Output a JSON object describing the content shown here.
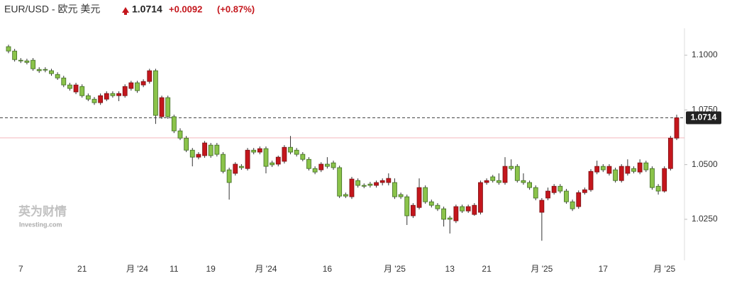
{
  "chart_data": {
    "type": "candlestick",
    "title": "EUR/USD - 欧元 美元",
    "price": 1.0714,
    "change": "+0.0092",
    "change_pct": "(+0.87%)",
    "watermark": "英为财情",
    "watermark_sub": "Investing.com",
    "reference_line": 1.0622,
    "up_color": "#c4161c",
    "down_color": "#8bc34a",
    "ylim": [
      1.0072,
      1.1123
    ],
    "yticks": [
      {
        "value": 1.025,
        "label": "1.0250"
      },
      {
        "value": 1.05,
        "label": "1.0500"
      },
      {
        "value": 1.075,
        "label": "1.0750"
      },
      {
        "value": 1.1,
        "label": "1.1000"
      }
    ],
    "categories": [
      null,
      null,
      "7",
      null,
      null,
      null,
      null,
      null,
      null,
      null,
      null,
      null,
      "21",
      null,
      null,
      null,
      null,
      null,
      null,
      null,
      null,
      "月 '24",
      null,
      null,
      null,
      null,
      null,
      "11",
      null,
      null,
      null,
      null,
      null,
      "19",
      null,
      null,
      null,
      null,
      null,
      null,
      null,
      null,
      "月 '24",
      null,
      null,
      null,
      null,
      null,
      null,
      null,
      null,
      null,
      "16",
      null,
      null,
      null,
      null,
      null,
      null,
      null,
      null,
      null,
      null,
      "月 '25",
      null,
      null,
      null,
      null,
      null,
      null,
      null,
      null,
      "13",
      null,
      null,
      null,
      null,
      null,
      "21",
      null,
      null,
      null,
      null,
      null,
      null,
      null,
      null,
      "月 '25",
      null,
      null,
      null,
      null,
      null,
      null,
      null,
      null,
      null,
      "17",
      null,
      null,
      null,
      null,
      null,
      null,
      null,
      null,
      null,
      "月 '25",
      null,
      null
    ],
    "open": [
      1.1039,
      1.1019,
      1.0977,
      1.0974,
      1.0977,
      1.0935,
      1.0935,
      1.0929,
      1.0912,
      1.0896,
      1.0864,
      1.0832,
      1.0857,
      1.0815,
      1.0799,
      1.0783,
      1.0799,
      1.0825,
      1.0815,
      1.0815,
      1.0848,
      1.0874,
      1.0864,
      1.088,
      1.0929,
      1.0719,
      1.0806,
      1.0719,
      1.0654,
      1.0621,
      1.0566,
      1.0534,
      1.0541,
      1.0589,
      1.0589,
      1.0547,
      1.0476,
      1.046,
      1.0492,
      1.0482,
      1.0566,
      1.0557,
      1.0573,
      1.0508,
      1.0502,
      1.0515,
      1.0579,
      1.0566,
      1.0547,
      1.0524,
      1.0482,
      1.0476,
      1.0502,
      1.0508,
      1.0486,
      1.0363,
      1.0353,
      1.0427,
      1.0405,
      1.0411,
      1.0405,
      1.0418,
      1.0418,
      1.0418,
      1.0363,
      1.0353,
      1.0266,
      1.0304,
      1.0395,
      1.033,
      1.0314,
      1.0298,
      1.0256,
      1.0243,
      1.0308,
      1.0288,
      1.0272,
      1.0282,
      1.0418,
      1.0444,
      1.0427,
      1.0418,
      1.0492,
      1.0492,
      1.0427,
      1.0418,
      1.0395,
      1.0282,
      1.0347,
      1.0372,
      1.0401,
      1.0379,
      1.033,
      1.0308,
      1.0372,
      1.0385,
      1.0466,
      1.0492,
      1.046,
      1.0476,
      1.0427,
      1.046,
      1.0482,
      1.0466,
      1.0508,
      1.0482,
      1.0401,
      1.0379,
      1.0482,
      1.0621
    ],
    "high": [
      1.1048,
      1.1029,
      1.0987,
      1.0984,
      1.0987,
      1.0945,
      1.0945,
      1.0938,
      1.0922,
      1.0906,
      1.0874,
      1.0874,
      1.0867,
      1.0825,
      1.0809,
      1.0825,
      1.0835,
      1.0835,
      1.0835,
      1.0867,
      1.0883,
      1.0883,
      1.089,
      1.0938,
      1.0938,
      1.0815,
      1.0815,
      1.0728,
      1.0666,
      1.0631,
      1.0576,
      1.0557,
      1.0608,
      1.0599,
      1.0599,
      1.0557,
      1.0486,
      1.0511,
      1.0502,
      1.0576,
      1.0576,
      1.0583,
      1.0583,
      1.0518,
      1.0541,
      1.0589,
      1.0631,
      1.0576,
      1.0557,
      1.0534,
      1.0492,
      1.0511,
      1.0534,
      1.0518,
      1.0495,
      1.0372,
      1.0444,
      1.0437,
      1.0414,
      1.0421,
      1.0427,
      1.0437,
      1.046,
      1.0437,
      1.0372,
      1.0363,
      1.0324,
      1.0437,
      1.0405,
      1.034,
      1.0324,
      1.0308,
      1.0266,
      1.0317,
      1.0317,
      1.0317,
      1.0324,
      1.0427,
      1.0437,
      1.0453,
      1.046,
      1.0534,
      1.0524,
      1.0502,
      1.046,
      1.0427,
      1.0405,
      1.0347,
      1.0395,
      1.0411,
      1.0411,
      1.0389,
      1.034,
      1.0382,
      1.0395,
      1.0479,
      1.0518,
      1.0502,
      1.0502,
      1.0486,
      1.0502,
      1.0524,
      1.0492,
      1.0524,
      1.0518,
      1.0492,
      1.0411,
      1.0492,
      1.0631,
      1.0728
    ],
    "low": [
      1.1009,
      1.0971,
      1.0964,
      1.0958,
      1.0929,
      1.0919,
      1.0922,
      1.0906,
      1.0887,
      1.0854,
      1.0838,
      1.0822,
      1.0806,
      1.079,
      1.0773,
      1.0773,
      1.079,
      1.0806,
      1.079,
      1.0806,
      1.0838,
      1.0828,
      1.0854,
      1.087,
      1.0686,
      1.0709,
      1.0709,
      1.0644,
      1.0612,
      1.0557,
      1.0492,
      1.0524,
      1.0531,
      1.0531,
      1.0537,
      1.046,
      1.034,
      1.045,
      1.0476,
      1.0473,
      1.0547,
      1.0547,
      1.046,
      1.0489,
      1.0492,
      1.0505,
      1.0547,
      1.0537,
      1.0515,
      1.0473,
      1.0456,
      1.0466,
      1.0482,
      1.0476,
      1.0347,
      1.0347,
      1.0343,
      1.0395,
      1.0392,
      1.0395,
      1.0395,
      1.0405,
      1.0405,
      1.0343,
      1.0343,
      1.0224,
      1.0256,
      1.0295,
      1.0321,
      1.0304,
      1.0288,
      1.0217,
      1.0185,
      1.0233,
      1.0279,
      1.0279,
      1.0266,
      1.0272,
      1.0408,
      1.0418,
      1.0408,
      1.0408,
      1.0473,
      1.0418,
      1.0408,
      1.0385,
      1.0337,
      1.0152,
      1.0337,
      1.0363,
      1.0369,
      1.0321,
      1.0288,
      1.0298,
      1.0363,
      1.0376,
      1.0456,
      1.0466,
      1.045,
      1.0418,
      1.0418,
      1.045,
      1.046,
      1.0456,
      1.0466,
      1.0385,
      1.0363,
      1.0372,
      1.0473,
      1.0612
    ],
    "close": [
      1.1019,
      1.098,
      1.0974,
      1.0967,
      1.0938,
      1.0929,
      1.0932,
      1.0916,
      1.0896,
      1.0864,
      1.0848,
      1.0864,
      1.0815,
      1.0799,
      1.0783,
      1.0815,
      1.0825,
      1.0815,
      1.0825,
      1.0857,
      1.0874,
      1.0838,
      1.088,
      1.0929,
      1.0725,
      1.0806,
      1.0719,
      1.0654,
      1.0621,
      1.0566,
      1.0534,
      1.0547,
      1.0599,
      1.0541,
      1.0547,
      1.0469,
      1.0418,
      1.0502,
      1.0486,
      1.0566,
      1.0557,
      1.0573,
      1.0492,
      1.0499,
      1.0534,
      1.0579,
      1.0557,
      1.0547,
      1.0524,
      1.0482,
      1.0466,
      1.0502,
      1.0492,
      1.0486,
      1.0356,
      1.0356,
      1.0434,
      1.0405,
      1.0401,
      1.0405,
      1.0418,
      1.0427,
      1.0437,
      1.0353,
      1.0353,
      1.0266,
      1.0314,
      1.0395,
      1.033,
      1.0314,
      1.0298,
      1.025,
      1.025,
      1.0308,
      1.0288,
      1.0308,
      1.0314,
      1.0418,
      1.0427,
      1.0427,
      1.0418,
      1.0492,
      1.0482,
      1.0427,
      1.0418,
      1.0395,
      1.0347,
      1.0337,
      1.0379,
      1.0401,
      1.0379,
      1.033,
      1.0298,
      1.0372,
      1.0385,
      1.0469,
      1.0492,
      1.0476,
      1.0492,
      1.0427,
      1.0492,
      1.0492,
      1.0469,
      1.0508,
      1.0476,
      1.0395,
      1.0379,
      1.0482,
      1.0621,
      1.0714
    ]
  }
}
